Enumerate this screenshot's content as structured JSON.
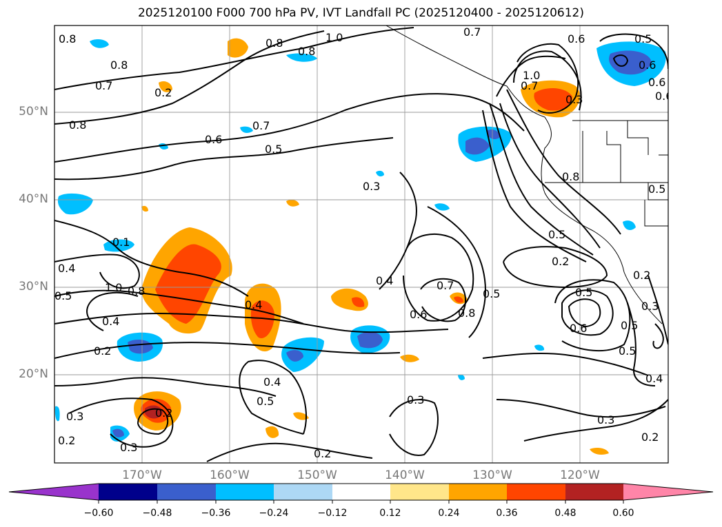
{
  "title": "2025120100 F000 700 hPa PV, IVT Landfall PC (2025120400 - 2025120612)",
  "lat_labels": [
    "50°N",
    "40°N",
    "30°N",
    "20°N"
  ],
  "lon_labels": [
    "170°W",
    "160°W",
    "150°W",
    "140°W",
    "130°W",
    "120°W"
  ],
  "colorbar": {
    "ticks": [
      "−0.60",
      "−0.48",
      "−0.36",
      "−0.24",
      "−0.12",
      "0.12",
      "0.24",
      "0.36",
      "0.48",
      "0.60"
    ],
    "colors": [
      "#9933cc",
      "#00008b",
      "#3a5fcd",
      "#00bfff",
      "#add8f5",
      "#ffffff",
      "#ffe68a",
      "#ffa500",
      "#ff4500",
      "#b22222",
      "#ff85a8"
    ]
  },
  "contour_labels": [
    "0.8",
    "0.8",
    "0.7",
    "0.2",
    "0.8",
    "1.0",
    "0.8",
    "0.7",
    "0.5",
    "0.6",
    "1.0",
    "0.6",
    "0.7",
    "0.8",
    "0.6",
    "0.5",
    "0.3",
    "0.8",
    "0.1",
    "0.4",
    "0.5",
    "1.0",
    "0.8",
    "0.4",
    "0.2",
    "0.4",
    "0.4",
    "0.5",
    "0.7",
    "0.8",
    "0.6",
    "0.5",
    "0.6",
    "0.2",
    "0.5",
    "0.6",
    "0.2",
    "0.3",
    "0.5",
    "0.4",
    "0.3",
    "0.2",
    "0.3",
    "0.2",
    "0.5",
    "0.3",
    "0.2",
    "0.3",
    "0.3",
    "0.2",
    "0.4",
    "0.5",
    "0.6",
    "0.5",
    "0.7"
  ]
}
